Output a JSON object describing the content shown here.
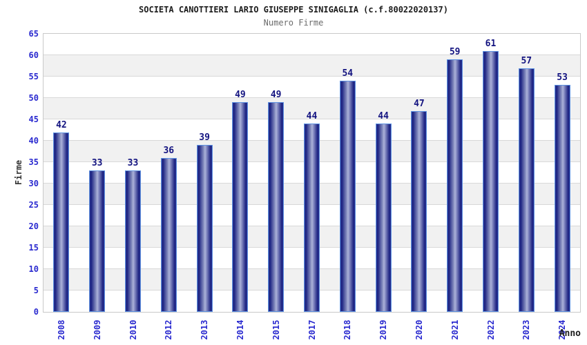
{
  "chart_data": {
    "type": "bar",
    "title": "SOCIETA CANOTTIERI LARIO GIUSEPPE SINIGAGLIA (c.f.80022020137)",
    "subtitle": "Numero Firme",
    "xlabel": "Anno",
    "ylabel": "Firme",
    "categories": [
      "2008",
      "2009",
      "2010",
      "2012",
      "2013",
      "2014",
      "2015",
      "2017",
      "2018",
      "2019",
      "2020",
      "2021",
      "2022",
      "2023",
      "2024"
    ],
    "values": [
      42,
      33,
      33,
      36,
      39,
      49,
      49,
      44,
      54,
      44,
      47,
      59,
      61,
      57,
      53
    ],
    "ylim": [
      0,
      65
    ],
    "ytick_step": 5,
    "yticks": [
      0,
      5,
      10,
      15,
      20,
      25,
      30,
      35,
      40,
      45,
      50,
      55,
      60,
      65
    ],
    "grid": "horizontal alternating bands every 5 units, gridlines on",
    "legend": "none",
    "bar_labels_shown": true,
    "colors": {
      "bar_edge_dark": "#1c2382",
      "bar_mid_light": "#adb3da",
      "bar_border": "#5f93e2",
      "axis_tick_label": "#2929cf",
      "value_label": "#131380",
      "band_gray": "#f1f1f1",
      "band_white": "#ffffff",
      "gridline": "#d8d8d8",
      "plot_frame": "#c9c9c9",
      "title_color": "#1b1b1b",
      "subtitle_color": "#6b6b6b",
      "axis_title_color": "#333333",
      "background": "#ffffff"
    }
  }
}
